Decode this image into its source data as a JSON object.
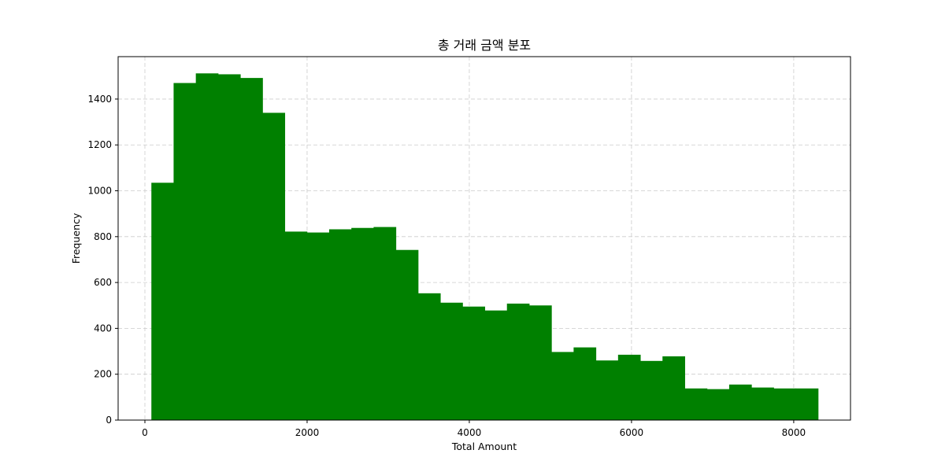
{
  "chart_data": {
    "type": "bar",
    "title": "총 거래 금액 분포",
    "xlabel": "Total Amount",
    "ylabel": "Frequency",
    "xlim": [
      -330,
      8700
    ],
    "ylim": [
      0,
      1585
    ],
    "xticks": [
      0,
      2000,
      4000,
      6000,
      8000
    ],
    "yticks": [
      0,
      200,
      400,
      600,
      800,
      1000,
      1200,
      1400
    ],
    "grid": true,
    "bar_color": "#008000",
    "grid_color": "#cccccc",
    "bin_start": 80,
    "bin_width": 274,
    "values": [
      1035,
      1470,
      1512,
      1508,
      1492,
      1340,
      822,
      818,
      832,
      838,
      842,
      742,
      553,
      512,
      495,
      478,
      508,
      500,
      297,
      317,
      260,
      285,
      258,
      278,
      138,
      135,
      155,
      142,
      138,
      138
    ]
  }
}
